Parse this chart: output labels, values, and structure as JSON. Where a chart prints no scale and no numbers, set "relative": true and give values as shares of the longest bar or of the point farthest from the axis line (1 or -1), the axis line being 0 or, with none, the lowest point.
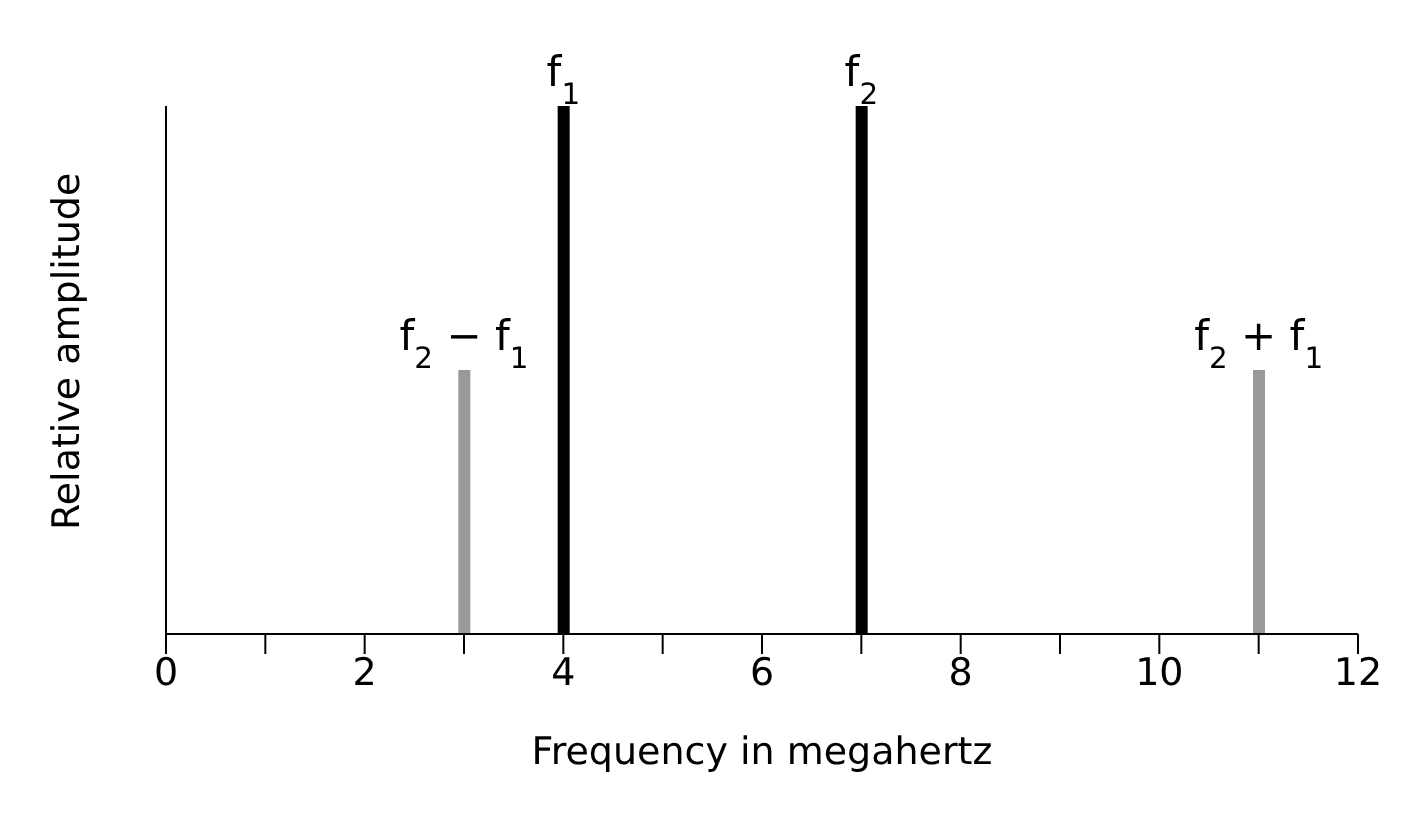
{
  "chart_data": {
    "type": "bar",
    "relative": true,
    "xlabel": "Frequency in megahertz",
    "ylabel": "Relative amplitude",
    "x": [
      3,
      4,
      7,
      11
    ],
    "values": [
      0.5,
      1,
      1,
      0.5
    ],
    "colors": [
      "#999999",
      "#000000",
      "#000000",
      "#999999"
    ],
    "xlim": [
      0,
      12
    ],
    "xticks": [
      0,
      {
        "value": 1,
        "label": null
      },
      2,
      {
        "value": 3,
        "label": null
      },
      4,
      {
        "value": 5,
        "label": null
      },
      6,
      {
        "value": 7,
        "label": null
      },
      8,
      {
        "value": 9,
        "label": null
      },
      10,
      {
        "value": 11,
        "label": null
      },
      12
    ],
    "annotations": [
      {
        "text": "f$_{2}$ − f$_{1}$",
        "x": 3,
        "y": 0.5
      },
      {
        "text": "f$_{1}$",
        "x": 4,
        "y": 1
      },
      {
        "text": "f$_{2}$",
        "x": 7,
        "y": 1
      },
      {
        "text": "f$_{2}$ + f$_{1}$",
        "x": 11,
        "y": 0.5
      }
    ],
    "grid": false,
    "legend": false
  }
}
